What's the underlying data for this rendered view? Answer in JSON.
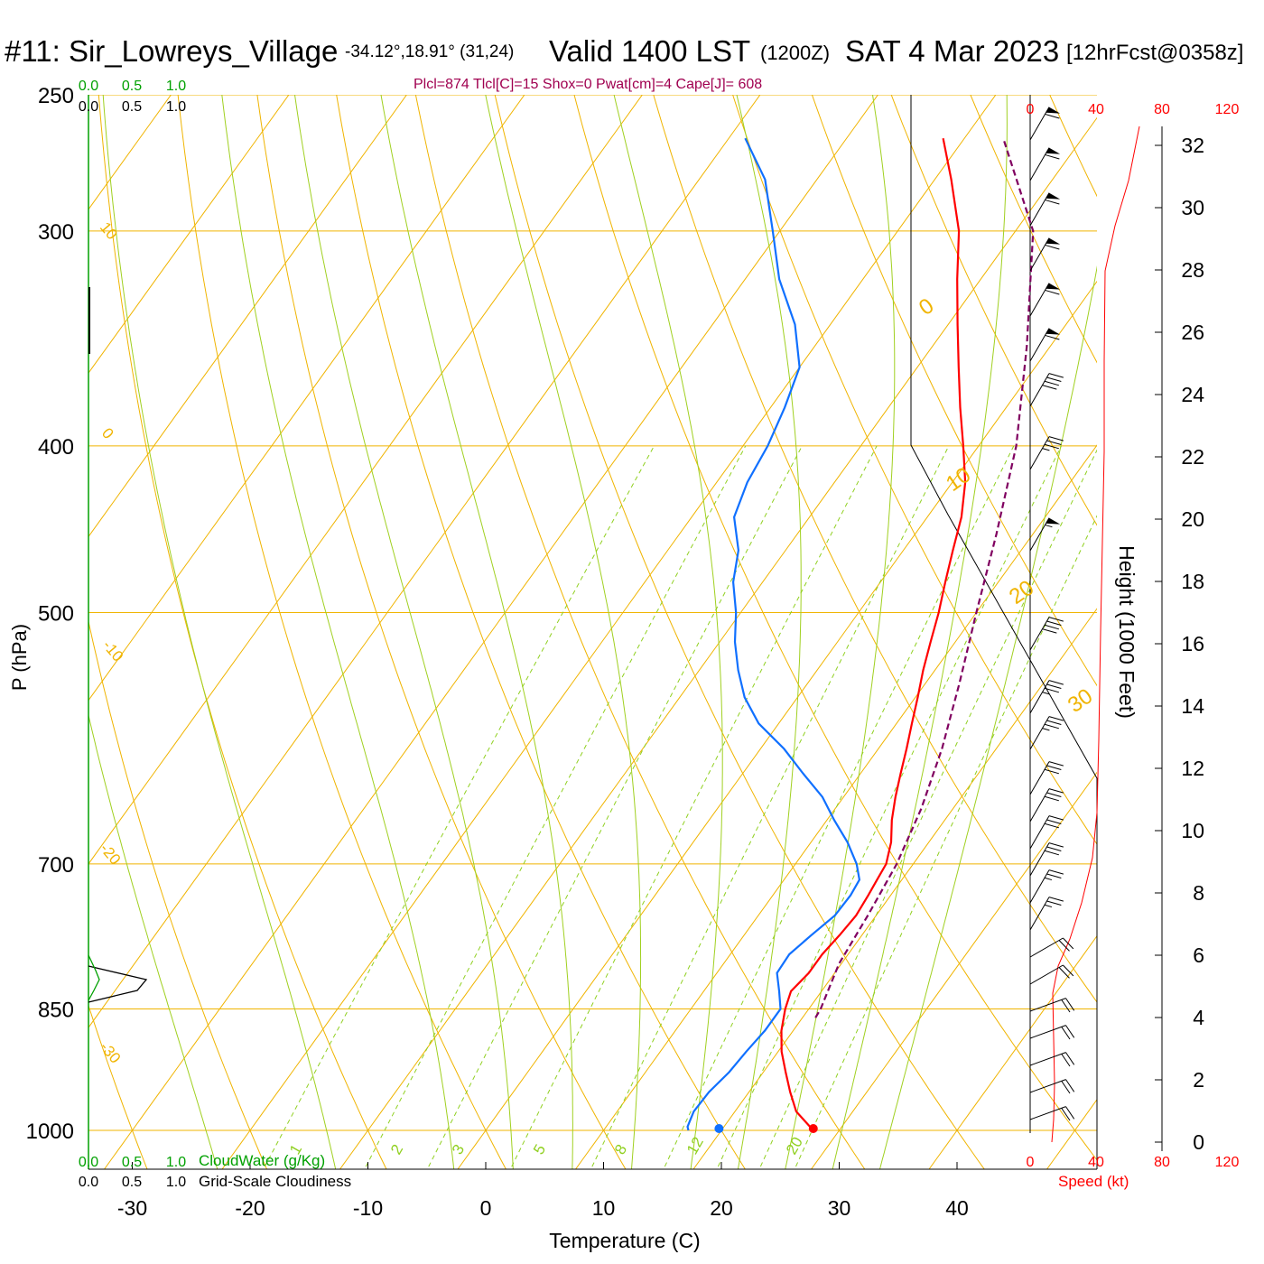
{
  "header": {
    "station": "#11: Sir_Lowreys_Village",
    "coords": "-34.12°,18.91° (31,24)",
    "valid": "Valid 1400 LST",
    "zulu": "(1200Z)",
    "date": "SAT 4 Mar 2023",
    "forecast": "[12hrFcst@0358z]"
  },
  "indices_text": "Plcl=874 Tlcl[C]=15 Shox=0 Pwat[cm]=4 Cape[J]= 608",
  "colors": {
    "isobar": "#f0b400",
    "isotherm": "#f0b400",
    "dry_adiabat": "#f0b400",
    "moist_adiabat": "#a0d020",
    "mixing_ratio": "#90d020",
    "temperature": "#ff0000",
    "dewpoint": "#1070ff",
    "parcel": "#800060",
    "cloudwater": "#00a000",
    "speed": "#ff0000"
  },
  "chart_data": {
    "type": "line",
    "xlabel": "Temperature (C)",
    "ylabel": "P (hPa)",
    "x_ticks": [
      -30,
      -20,
      -10,
      0,
      10,
      20,
      30,
      40
    ],
    "pressure_ticks": [
      250,
      300,
      400,
      500,
      700,
      850,
      1000
    ],
    "isotherm_labels": [
      "10",
      "0",
      "-10",
      "-20",
      "-30"
    ],
    "dry_adiabat_labels": [
      "0",
      "10",
      "20",
      "30"
    ],
    "mixing_ratio_labels": [
      "1",
      "2",
      "3",
      "5",
      "8",
      "12",
      "20"
    ],
    "height_axis": {
      "label": "Height (1000 Feet)",
      "ticks": [
        "0",
        "2",
        "4",
        "6",
        "8",
        "10",
        "12",
        "14",
        "16",
        "18",
        "20",
        "22",
        "24",
        "26",
        "28",
        "30",
        "32"
      ]
    },
    "speed_axis": {
      "label": "Speed (kt)",
      "ticks": [
        "0",
        "40",
        "80",
        "120"
      ]
    },
    "cloud_axis": {
      "cloudwater_label": "CloudWater (g/Kg)",
      "cloudiness_label": "Grid-Scale Cloudiness",
      "ticks": [
        "0.0",
        "0.5",
        "1.0"
      ]
    },
    "series": [
      {
        "name": "Temperature",
        "points": [
          [
            1000,
            27.8
          ],
          [
            975,
            25.2
          ],
          [
            950,
            23.5
          ],
          [
            925,
            21.9
          ],
          [
            900,
            20.3
          ],
          [
            875,
            19.0
          ],
          [
            850,
            18.0
          ],
          [
            830,
            17.4
          ],
          [
            810,
            17.8
          ],
          [
            790,
            17.8
          ],
          [
            770,
            18.1
          ],
          [
            750,
            18.3
          ],
          [
            730,
            18.1
          ],
          [
            715,
            17.9
          ],
          [
            700,
            17.7
          ],
          [
            680,
            16.8
          ],
          [
            660,
            15.5
          ],
          [
            640,
            14.4
          ],
          [
            620,
            13.4
          ],
          [
            600,
            12.4
          ],
          [
            580,
            11.3
          ],
          [
            560,
            10.2
          ],
          [
            540,
            9.0
          ],
          [
            520,
            7.9
          ],
          [
            500,
            6.8
          ],
          [
            480,
            5.5
          ],
          [
            460,
            4.2
          ],
          [
            440,
            2.9
          ],
          [
            420,
            1.1
          ],
          [
            400,
            -1.3
          ],
          [
            380,
            -3.9
          ],
          [
            360,
            -6.5
          ],
          [
            340,
            -9.2
          ],
          [
            320,
            -12.0
          ],
          [
            300,
            -14.8
          ],
          [
            280,
            -18.6
          ],
          [
            265,
            -21.8
          ]
        ]
      },
      {
        "name": "Dewpoint",
        "points": [
          [
            1000,
            17.2
          ],
          [
            995,
            16.9
          ],
          [
            975,
            16.5
          ],
          [
            950,
            16.6
          ],
          [
            925,
            17.1
          ],
          [
            900,
            17.3
          ],
          [
            875,
            17.6
          ],
          [
            850,
            17.6
          ],
          [
            830,
            16.4
          ],
          [
            810,
            15.1
          ],
          [
            790,
            15.0
          ],
          [
            770,
            15.7
          ],
          [
            750,
            16.5
          ],
          [
            730,
            16.6
          ],
          [
            715,
            16.4
          ],
          [
            700,
            15.2
          ],
          [
            680,
            13.1
          ],
          [
            660,
            10.6
          ],
          [
            640,
            8.2
          ],
          [
            620,
            5.1
          ],
          [
            600,
            2.0
          ],
          [
            580,
            -1.7
          ],
          [
            560,
            -4.5
          ],
          [
            540,
            -6.7
          ],
          [
            520,
            -8.7
          ],
          [
            500,
            -10.4
          ],
          [
            480,
            -12.5
          ],
          [
            460,
            -14.0
          ],
          [
            440,
            -16.4
          ],
          [
            420,
            -17.4
          ],
          [
            400,
            -17.9
          ],
          [
            380,
            -18.8
          ],
          [
            360,
            -20.0
          ],
          [
            340,
            -23.0
          ],
          [
            320,
            -27.1
          ],
          [
            300,
            -30.6
          ],
          [
            280,
            -34.4
          ],
          [
            265,
            -38.6
          ]
        ]
      },
      {
        "name": "Parcel",
        "points": [
          [
            860,
            21.1
          ],
          [
            850,
            21.0
          ],
          [
            800,
            19.8
          ],
          [
            750,
            19.3
          ],
          [
            700,
            18.6
          ],
          [
            650,
            17.3
          ],
          [
            600,
            15.4
          ],
          [
            550,
            12.9
          ],
          [
            500,
            10.0
          ],
          [
            450,
            6.9
          ],
          [
            400,
            3.2
          ],
          [
            350,
            -2.0
          ],
          [
            300,
            -8.5
          ],
          [
            265,
            -16.7
          ]
        ]
      }
    ]
  }
}
